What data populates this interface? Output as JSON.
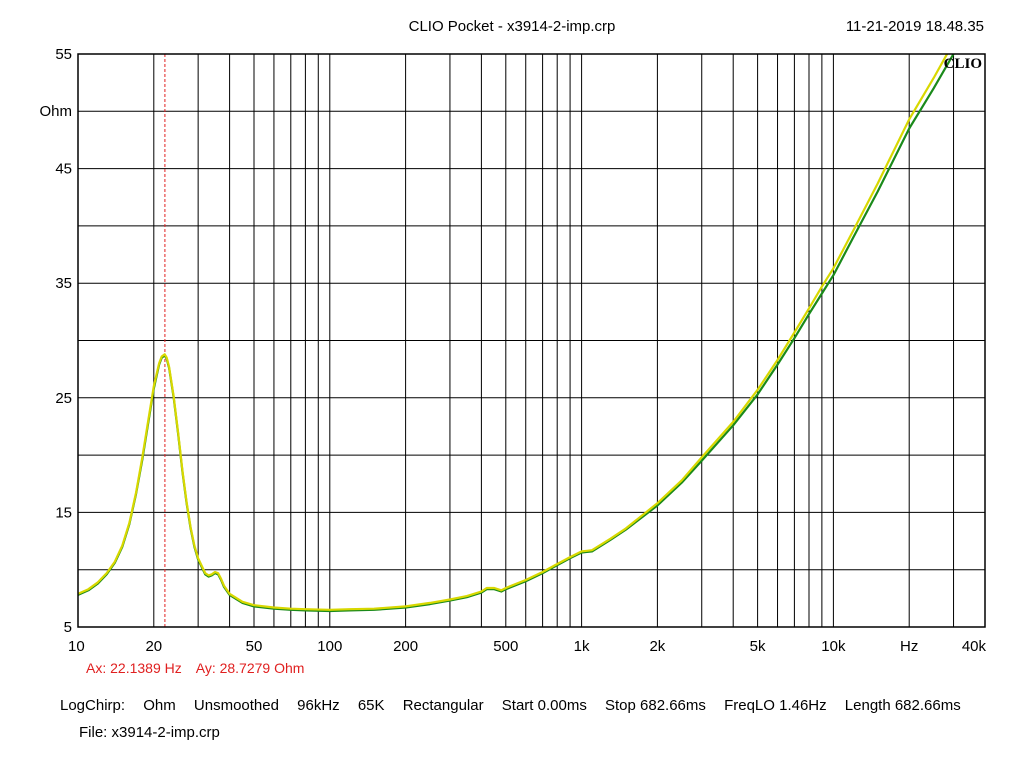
{
  "header": {
    "title": "CLIO Pocket - x3914-2-imp.crp",
    "timestamp": "11-21-2019 18.48.35",
    "logo": "CLIO"
  },
  "cursor": {
    "ax": "Ax: 22.1389 Hz",
    "ay": "Ay: 28.7279 Ohm",
    "frequency_hz": 22.1389,
    "color": "#e02020"
  },
  "settings": {
    "mode": "LogChirp:",
    "unit": "Ohm",
    "smoothing": "Unsmoothed",
    "rate": "96kHz",
    "size": "65K",
    "window": "Rectangular",
    "start": "Start 0.00ms",
    "stop": "Stop 682.66ms",
    "freqlo": "FreqLO 1.46Hz",
    "length": "Length 682.66ms"
  },
  "file": "File: x3914-2-imp.crp",
  "chart_data": {
    "type": "line",
    "xscale": "log",
    "xlim": [
      10,
      40000
    ],
    "ylim": [
      5,
      55
    ],
    "ylabel": "Ohm",
    "xlabel": "Hz",
    "grid": true,
    "y_tick_labels": [
      {
        "value": 55,
        "label": "55"
      },
      {
        "value": 45,
        "label": "45"
      },
      {
        "value": 35,
        "label": "35"
      },
      {
        "value": 25,
        "label": "25"
      },
      {
        "value": 15,
        "label": "15"
      },
      {
        "value": 5,
        "label": "5"
      }
    ],
    "x_tick_labels": [
      {
        "value": 10,
        "label": "10"
      },
      {
        "value": 20,
        "label": "20"
      },
      {
        "value": 50,
        "label": "50"
      },
      {
        "value": 100,
        "label": "100"
      },
      {
        "value": 200,
        "label": "200"
      },
      {
        "value": 500,
        "label": "500"
      },
      {
        "value": 1000,
        "label": "1k"
      },
      {
        "value": 2000,
        "label": "2k"
      },
      {
        "value": 5000,
        "label": "5k"
      },
      {
        "value": 10000,
        "label": "10k"
      },
      {
        "value": 40000,
        "label": "40k"
      }
    ],
    "series": [
      {
        "color": "#1a8a1a",
        "x": [
          10,
          11,
          12,
          13,
          14,
          15,
          16,
          17,
          18,
          19,
          20,
          21,
          21.5,
          22.1,
          22.5,
          23,
          24,
          25,
          26,
          27,
          28,
          29,
          30,
          32,
          33,
          34,
          35,
          36,
          37,
          38,
          40,
          45,
          50,
          60,
          70,
          80,
          100,
          120,
          150,
          200,
          250,
          300,
          350,
          400,
          420,
          450,
          480,
          500,
          600,
          700,
          800,
          900,
          1000,
          1050,
          1100,
          1300,
          1500,
          2000,
          2500,
          3000,
          4000,
          5000,
          6000,
          7000,
          8000,
          9000,
          10000,
          12000,
          15000,
          20000,
          25000,
          30000,
          35000
        ],
        "y": [
          7.8,
          8.2,
          8.8,
          9.6,
          10.6,
          12.0,
          14.0,
          16.6,
          19.6,
          22.8,
          25.8,
          27.9,
          28.5,
          28.7,
          28.4,
          27.6,
          25.0,
          21.8,
          18.5,
          15.8,
          13.6,
          12.0,
          10.9,
          9.6,
          9.4,
          9.5,
          9.7,
          9.6,
          9.1,
          8.5,
          7.8,
          7.1,
          6.8,
          6.6,
          6.5,
          6.45,
          6.4,
          6.45,
          6.5,
          6.7,
          7.0,
          7.3,
          7.6,
          8.0,
          8.3,
          8.3,
          8.1,
          8.3,
          9.0,
          9.7,
          10.4,
          11.0,
          11.5,
          11.55,
          11.6,
          12.6,
          13.5,
          15.6,
          17.6,
          19.5,
          22.6,
          25.3,
          27.9,
          30.2,
          32.3,
          34.1,
          35.7,
          39.0,
          43.0,
          48.5,
          52.0,
          55.0,
          57.6
        ]
      },
      {
        "color": "#d8d800",
        "x": [
          10,
          11,
          12,
          13,
          14,
          15,
          16,
          17,
          18,
          19,
          20,
          21,
          21.5,
          22.1,
          22.5,
          23,
          24,
          25,
          26,
          27,
          28,
          29,
          30,
          32,
          33,
          34,
          35,
          36,
          37,
          38,
          40,
          45,
          50,
          60,
          70,
          80,
          100,
          120,
          150,
          200,
          250,
          300,
          350,
          400,
          420,
          450,
          480,
          500,
          600,
          700,
          800,
          900,
          1000,
          1050,
          1100,
          1300,
          1500,
          2000,
          2500,
          3000,
          4000,
          5000,
          6000,
          7000,
          8000,
          9000,
          10000,
          12000,
          15000,
          20000,
          25000,
          30000,
          35000
        ],
        "y": [
          7.9,
          8.3,
          8.9,
          9.7,
          10.7,
          12.1,
          14.1,
          16.7,
          19.8,
          23.0,
          26.0,
          28.0,
          28.6,
          28.8,
          28.5,
          27.7,
          25.1,
          21.9,
          18.6,
          15.9,
          13.7,
          12.1,
          11.0,
          9.7,
          9.5,
          9.6,
          9.8,
          9.7,
          9.2,
          8.6,
          7.9,
          7.2,
          6.9,
          6.7,
          6.6,
          6.55,
          6.5,
          6.55,
          6.6,
          6.8,
          7.1,
          7.4,
          7.7,
          8.1,
          8.4,
          8.4,
          8.2,
          8.4,
          9.1,
          9.8,
          10.5,
          11.1,
          11.6,
          11.65,
          11.7,
          12.7,
          13.6,
          15.8,
          17.8,
          19.8,
          22.9,
          25.7,
          28.3,
          30.7,
          32.8,
          34.7,
          36.3,
          39.6,
          43.7,
          49.3,
          52.9,
          56.0,
          58.6
        ]
      }
    ]
  }
}
